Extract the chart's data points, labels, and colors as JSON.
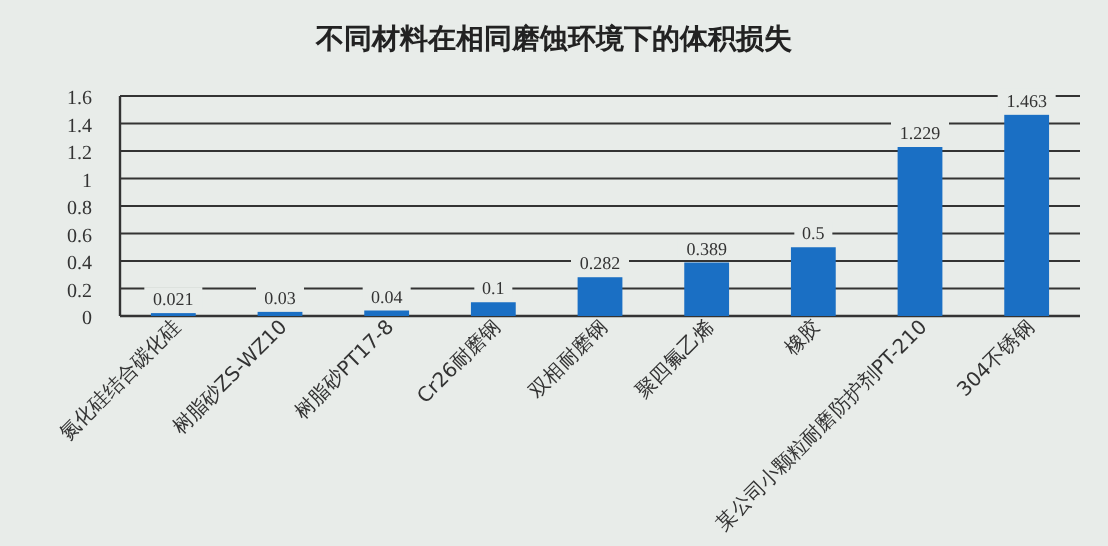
{
  "chart_data": {
    "type": "bar",
    "title": "不同材料在相同磨蚀环境下的体积损失",
    "categories": [
      "氮化硅结合碳化硅",
      "树脂砂ZS-WZ10",
      "树脂砂PT17-8",
      "Cr26耐磨钢",
      "双相耐磨钢",
      "聚四氟乙烯",
      "橡胶",
      "某公司小颗粒耐磨防护剂PT-210",
      "304不锈钢"
    ],
    "values": [
      0.021,
      0.03,
      0.04,
      0.1,
      0.282,
      0.389,
      0.5,
      1.229,
      1.463
    ],
    "color": "#1a6fc4",
    "ylim": [
      0,
      1.6
    ],
    "yticks": [
      0,
      0.2,
      0.4,
      0.6,
      0.8,
      1,
      1.2,
      1.4,
      1.6
    ],
    "grid": "y",
    "data_labels": true
  }
}
